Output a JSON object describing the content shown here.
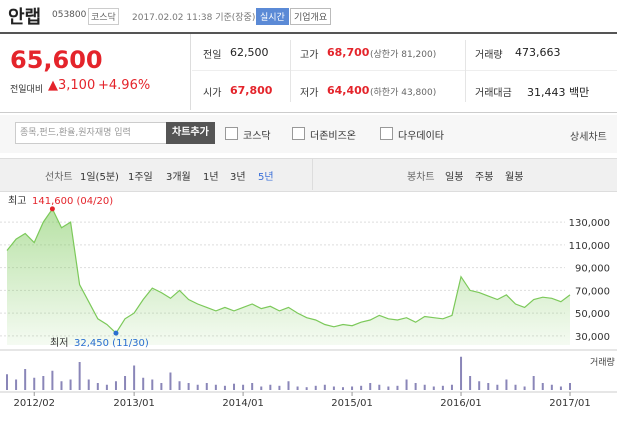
{
  "header": {
    "name": "안랩",
    "code": "053800",
    "market": "코스닥",
    "time": "2017.02.02 11:38 기준(장중)",
    "realtime": "실시간",
    "company": "기업개요"
  },
  "quote": {
    "price": "65,600",
    "change_label": "전일대비",
    "change": "▲3,100",
    "rate": "+4.96%",
    "rows": [
      [
        [
          "전일",
          "62,500",
          ""
        ],
        [
          "고가",
          "68,700",
          "(상한가 81,200)"
        ],
        [
          "거래량",
          "473,663",
          ""
        ]
      ],
      [
        [
          "시가",
          "67,800",
          ""
        ],
        [
          "저가",
          "64,400",
          "(하한가 43,800)"
        ],
        [
          "거래대금",
          "31,443 백만",
          ""
        ]
      ]
    ]
  },
  "search": {
    "placeholder": "종목,펀드,환율,원자재명 입력",
    "add": "차트추가",
    "compare": [
      "코스닥",
      "더존비즈온",
      "다우데이타"
    ],
    "detail": "상세차트"
  },
  "tabs": {
    "line_label": "선차트",
    "line_periods": [
      "1일(5분)",
      "1주일",
      "3개월",
      "1년",
      "3년",
      "5년"
    ],
    "candle_label": "봉차트",
    "candle_periods": [
      "일봉",
      "주봉",
      "월봉"
    ]
  },
  "chart_data": [
    {
      "type": "area",
      "color": "#7cc95a",
      "x": [
        "2011/11",
        "2011/12",
        "2012/01",
        "2012/02",
        "2012/03",
        "2012/04",
        "2012/05",
        "2012/06",
        "2012/07",
        "2012/08",
        "2012/09",
        "2012/10",
        "2012/11",
        "2012/12",
        "2013/01",
        "2013/02",
        "2013/03",
        "2013/04",
        "2013/05",
        "2013/06",
        "2013/07",
        "2013/08",
        "2013/09",
        "2013/10",
        "2013/11",
        "2013/12",
        "2014/01",
        "2014/02",
        "2014/03",
        "2014/04",
        "2014/05",
        "2014/06",
        "2014/07",
        "2014/08",
        "2014/09",
        "2014/10",
        "2014/11",
        "2014/12",
        "2015/01",
        "2015/02",
        "2015/03",
        "2015/04",
        "2015/05",
        "2015/06",
        "2015/07",
        "2015/08",
        "2015/09",
        "2015/10",
        "2015/11",
        "2015/12",
        "2016/01",
        "2016/02",
        "2016/03",
        "2016/04",
        "2016/05",
        "2016/06",
        "2016/07",
        "2016/08",
        "2016/09",
        "2016/10",
        "2016/11",
        "2016/12",
        "2017/01"
      ],
      "values": [
        105000,
        115000,
        120000,
        112000,
        130000,
        141600,
        125000,
        130000,
        75000,
        60000,
        45000,
        40000,
        32450,
        45000,
        50000,
        62000,
        72000,
        68000,
        63000,
        70000,
        62000,
        58000,
        55000,
        52000,
        55000,
        52000,
        55000,
        58000,
        54000,
        56000,
        52000,
        55000,
        50000,
        46000,
        44000,
        40000,
        38000,
        40000,
        39000,
        42000,
        44000,
        48000,
        45000,
        44000,
        46000,
        42000,
        47000,
        46000,
        45000,
        48000,
        82000,
        70000,
        68000,
        65000,
        62000,
        66000,
        58000,
        55000,
        62000,
        64000,
        63000,
        60000,
        66000
      ],
      "xticks": [
        "2012/02",
        "2013/01",
        "2014/01",
        "2015/01",
        "2016/01",
        "2017/01"
      ],
      "ylim": [
        22000,
        145000
      ],
      "yticks": [
        {
          "value": 30000,
          "label": "30,000"
        },
        {
          "value": 50000,
          "label": "50,000"
        },
        {
          "value": 70000,
          "label": "70,000"
        },
        {
          "value": 90000,
          "label": "90,000"
        },
        {
          "value": 110000,
          "label": "110,000"
        },
        {
          "value": 130000,
          "label": "130,000"
        }
      ],
      "grid": true,
      "high": {
        "label": "최고",
        "text": "141,600 (04/20)"
      },
      "low": {
        "label": "최저",
        "text": "32,450 (11/30)"
      }
    },
    {
      "type": "bar",
      "color": "#8a86b8",
      "ylabel": "거래량",
      "x": [
        "2011/11",
        "2011/12",
        "2012/01",
        "2012/02",
        "2012/03",
        "2012/04",
        "2012/05",
        "2012/06",
        "2012/07",
        "2012/08",
        "2012/09",
        "2012/10",
        "2012/11",
        "2012/12",
        "2013/01",
        "2013/02",
        "2013/03",
        "2013/04",
        "2013/05",
        "2013/06",
        "2013/07",
        "2013/08",
        "2013/09",
        "2013/10",
        "2013/11",
        "2013/12",
        "2014/01",
        "2014/02",
        "2014/03",
        "2014/04",
        "2014/05",
        "2014/06",
        "2014/07",
        "2014/08",
        "2014/09",
        "2014/10",
        "2014/11",
        "2014/12",
        "2015/01",
        "2015/02",
        "2015/03",
        "2015/04",
        "2015/05",
        "2015/06",
        "2015/07",
        "2015/08",
        "2015/09",
        "2015/10",
        "2015/11",
        "2015/12",
        "2016/01",
        "2016/02",
        "2016/03",
        "2016/04",
        "2016/05",
        "2016/06",
        "2016/07",
        "2016/08",
        "2016/09",
        "2016/10",
        "2016/11",
        "2016/12",
        "2017/01"
      ],
      "values": [
        45,
        30,
        60,
        35,
        40,
        55,
        25,
        30,
        80,
        30,
        20,
        15,
        25,
        40,
        70,
        35,
        30,
        20,
        50,
        25,
        20,
        15,
        20,
        15,
        12,
        18,
        15,
        20,
        10,
        15,
        12,
        25,
        10,
        8,
        12,
        15,
        10,
        8,
        10,
        12,
        20,
        15,
        10,
        12,
        30,
        20,
        15,
        10,
        12,
        15,
        95,
        40,
        25,
        20,
        15,
        30,
        15,
        10,
        40,
        20,
        15,
        10,
        20
      ],
      "ylim": [
        0,
        100
      ]
    }
  ]
}
